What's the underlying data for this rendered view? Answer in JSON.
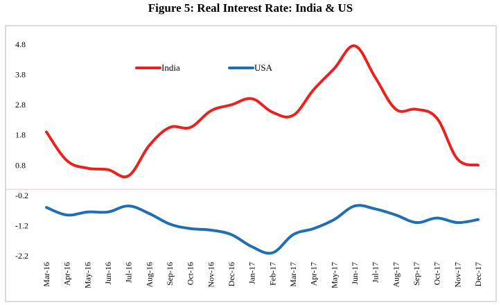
{
  "figure_title": "Figure 5: Real Interest Rate: India & US",
  "chart_data": {
    "type": "line",
    "title": "Figure 5: Real Interest Rate: India & US",
    "xlabel": "",
    "ylabel": "",
    "categories": [
      "Mar-16",
      "Apr-16",
      "May-16",
      "Jun-16",
      "Jul-16",
      "Aug-16",
      "Sep-16",
      "Oct-16",
      "Nov-16",
      "Dec-16",
      "Jan-17",
      "Feb-17",
      "Mar-17",
      "Apr-17",
      "May-17",
      "Jun-17",
      "Jul-17",
      "Aug-17",
      "Sep-17",
      "Oct-17",
      "Nov-17",
      "Dec-17"
    ],
    "y_ticks": [
      "4.8",
      "3.8",
      "2.8",
      "1.8",
      "0.8",
      "-0.2",
      "-1.2",
      "-2.2"
    ],
    "ylim": [
      -2.2,
      4.8
    ],
    "grid": false,
    "legend_position": "top-left",
    "series": [
      {
        "name": "India",
        "color": "#e8221f",
        "values": [
          1.9,
          0.95,
          0.7,
          0.65,
          0.45,
          1.45,
          2.05,
          2.05,
          2.6,
          2.8,
          3.0,
          2.55,
          2.45,
          3.3,
          4.0,
          4.75,
          3.7,
          2.65,
          2.65,
          2.35,
          1.0,
          0.8
        ]
      },
      {
        "name": "USA",
        "color": "#1f6fb5",
        "values": [
          -0.6,
          -0.85,
          -0.75,
          -0.75,
          -0.55,
          -0.8,
          -1.15,
          -1.3,
          -1.35,
          -1.5,
          -1.9,
          -2.1,
          -1.5,
          -1.3,
          -1.0,
          -0.55,
          -0.65,
          -0.85,
          -1.1,
          -0.95,
          -1.1,
          -1.0
        ]
      }
    ]
  }
}
